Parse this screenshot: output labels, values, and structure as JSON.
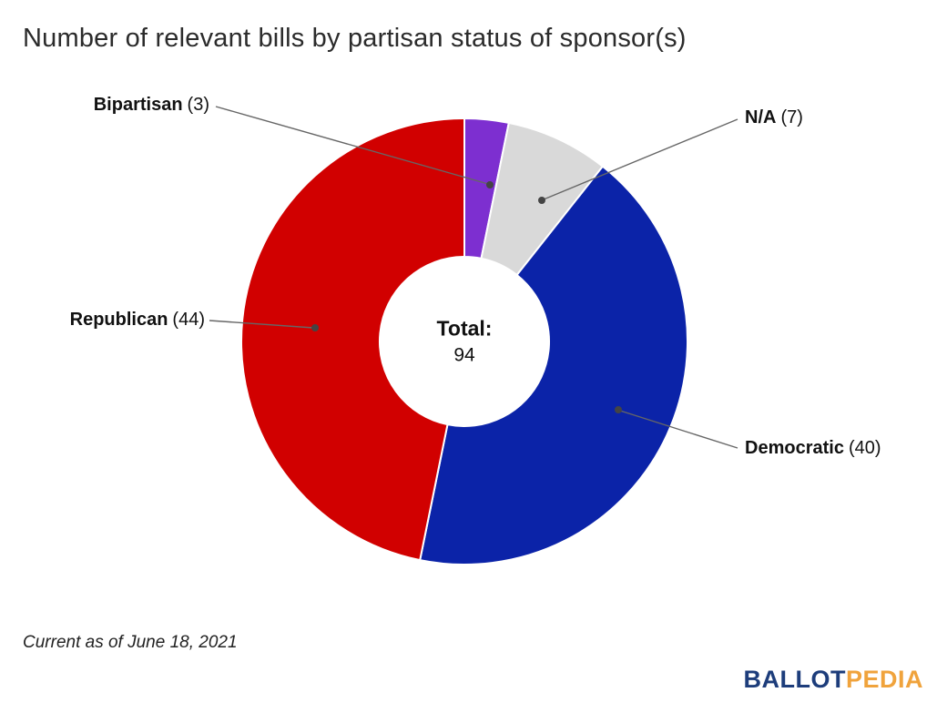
{
  "title": "Number of relevant bills by partisan status of sponsor(s)",
  "footnote": "Current as of June 18, 2021",
  "center": {
    "label": "Total:",
    "value": "94"
  },
  "logo": {
    "part1": "BALLOT",
    "part2": "PEDIA"
  },
  "chart_data": {
    "type": "pie",
    "subtype": "donut",
    "title": "Number of relevant bills by partisan status of sponsor(s)",
    "total": 94,
    "direction": "clockwise",
    "start_angle_deg": 0,
    "legend_position": "outside-labels-with-leader-lines",
    "segments": [
      {
        "label": "Bipartisan",
        "value": 3,
        "count_display": "(3)",
        "color": "#7d2fd0"
      },
      {
        "label": "N/A",
        "value": 7,
        "count_display": "(7)",
        "color": "#d9d9d9"
      },
      {
        "label": "Democratic",
        "value": 40,
        "count_display": "(40)",
        "color": "#0b23a8"
      },
      {
        "label": "Republican",
        "value": 44,
        "count_display": "(44)",
        "color": "#d10000"
      }
    ]
  }
}
